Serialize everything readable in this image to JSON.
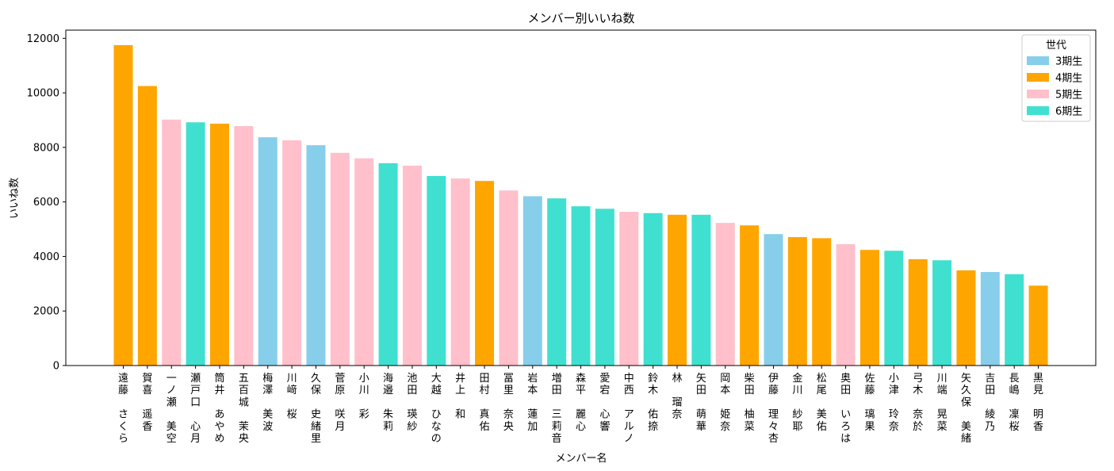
{
  "chart_data": {
    "type": "bar",
    "title": "メンバー別いいね数",
    "xlabel": "メンバー名",
    "ylabel": "いいね数",
    "ylim": [
      0,
      12300
    ],
    "yticks": [
      0,
      2000,
      4000,
      6000,
      8000,
      10000,
      12000
    ],
    "grid": false,
    "legend": {
      "title": "世代",
      "placement": "top-right",
      "entries": [
        {
          "label": "3期生",
          "color": "#87CEEB"
        },
        {
          "label": "4期生",
          "color": "#FFA500"
        },
        {
          "label": "5期生",
          "color": "#FFC0CB"
        },
        {
          "label": "6期生",
          "color": "#40E0D0"
        }
      ]
    },
    "bars": [
      {
        "name": "遠藤　さくら",
        "value": 11750,
        "gen": "4期生"
      },
      {
        "name": "賀喜　遥香",
        "value": 10250,
        "gen": "4期生"
      },
      {
        "name": "一ノ瀬　美空",
        "value": 9020,
        "gen": "5期生"
      },
      {
        "name": "瀬戸口　心月",
        "value": 8920,
        "gen": "6期生"
      },
      {
        "name": "筒井　あやめ",
        "value": 8870,
        "gen": "4期生"
      },
      {
        "name": "五百城　茉央",
        "value": 8780,
        "gen": "5期生"
      },
      {
        "name": "梅澤　美波",
        "value": 8370,
        "gen": "3期生"
      },
      {
        "name": "川﨑　桜",
        "value": 8260,
        "gen": "5期生"
      },
      {
        "name": "久保　史緒里",
        "value": 8080,
        "gen": "3期生"
      },
      {
        "name": "菅原　咲月",
        "value": 7800,
        "gen": "5期生"
      },
      {
        "name": "小川　彩",
        "value": 7600,
        "gen": "5期生"
      },
      {
        "name": "海邉　朱莉",
        "value": 7420,
        "gen": "6期生"
      },
      {
        "name": "池田　瑛紗",
        "value": 7330,
        "gen": "5期生"
      },
      {
        "name": "大越　ひなの",
        "value": 6950,
        "gen": "6期生"
      },
      {
        "name": "井上　和",
        "value": 6860,
        "gen": "5期生"
      },
      {
        "name": "田村　真佑",
        "value": 6770,
        "gen": "4期生"
      },
      {
        "name": "冨里　奈央",
        "value": 6420,
        "gen": "5期生"
      },
      {
        "name": "岩本　蓮加",
        "value": 6210,
        "gen": "3期生"
      },
      {
        "name": "増田　三莉音",
        "value": 6130,
        "gen": "6期生"
      },
      {
        "name": "森平　麗心",
        "value": 5840,
        "gen": "6期生"
      },
      {
        "name": "愛宕　心響",
        "value": 5750,
        "gen": "6期生"
      },
      {
        "name": "中西　アルノ",
        "value": 5640,
        "gen": "5期生"
      },
      {
        "name": "鈴木　佑捺",
        "value": 5590,
        "gen": "6期生"
      },
      {
        "name": "林　瑠奈",
        "value": 5530,
        "gen": "4期生"
      },
      {
        "name": "矢田　萌華",
        "value": 5530,
        "gen": "6期生"
      },
      {
        "name": "岡本　姫奈",
        "value": 5230,
        "gen": "5期生"
      },
      {
        "name": "柴田　柚菜",
        "value": 5140,
        "gen": "4期生"
      },
      {
        "name": "伊藤　理々杏",
        "value": 4820,
        "gen": "3期生"
      },
      {
        "name": "金川　紗耶",
        "value": 4710,
        "gen": "4期生"
      },
      {
        "name": "松尾　美佑",
        "value": 4670,
        "gen": "4期生"
      },
      {
        "name": "奥田　いろは",
        "value": 4450,
        "gen": "5期生"
      },
      {
        "name": "佐藤　璃果",
        "value": 4240,
        "gen": "4期生"
      },
      {
        "name": "小津　玲奈",
        "value": 4210,
        "gen": "6期生"
      },
      {
        "name": "弓木　奈於",
        "value": 3900,
        "gen": "4期生"
      },
      {
        "name": "川端　晃菜",
        "value": 3860,
        "gen": "6期生"
      },
      {
        "name": "矢久保　美緒",
        "value": 3490,
        "gen": "4期生"
      },
      {
        "name": "吉田　綾乃",
        "value": 3430,
        "gen": "3期生"
      },
      {
        "name": "長嶋　凜桜",
        "value": 3350,
        "gen": "6期生"
      },
      {
        "name": "黒見　明香",
        "value": 2930,
        "gen": "4期生"
      }
    ]
  }
}
